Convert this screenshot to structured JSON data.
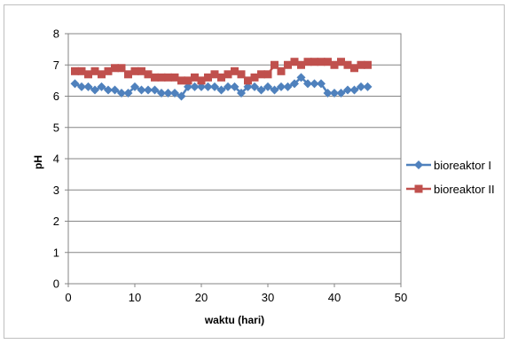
{
  "chart_data": {
    "type": "line",
    "title": "",
    "xlabel": "waktu (hari)",
    "ylabel": "pH",
    "xlim": [
      0,
      50
    ],
    "ylim": [
      0,
      8
    ],
    "xticks": [
      0,
      10,
      20,
      30,
      40,
      50
    ],
    "yticks": [
      0,
      1,
      2,
      3,
      4,
      5,
      6,
      7,
      8
    ],
    "grid": "horizontal",
    "legend_position": "right",
    "series": [
      {
        "name": "bioreaktor I",
        "color": "#4f81bd",
        "marker": "diamond",
        "x": [
          1,
          2,
          3,
          4,
          5,
          6,
          7,
          8,
          9,
          10,
          11,
          12,
          13,
          14,
          15,
          16,
          17,
          18,
          19,
          20,
          21,
          22,
          23,
          24,
          25,
          26,
          27,
          28,
          29,
          30,
          31,
          32,
          33,
          34,
          35,
          36,
          37,
          38,
          39,
          40,
          41,
          42,
          43,
          44,
          45
        ],
        "y": [
          6.4,
          6.3,
          6.3,
          6.2,
          6.3,
          6.2,
          6.2,
          6.1,
          6.1,
          6.3,
          6.2,
          6.2,
          6.2,
          6.1,
          6.1,
          6.1,
          6.0,
          6.3,
          6.3,
          6.3,
          6.3,
          6.3,
          6.2,
          6.3,
          6.3,
          6.1,
          6.3,
          6.3,
          6.2,
          6.3,
          6.2,
          6.3,
          6.3,
          6.4,
          6.6,
          6.4,
          6.4,
          6.4,
          6.1,
          6.1,
          6.1,
          6.2,
          6.2,
          6.3,
          6.3
        ]
      },
      {
        "name": "bioreaktor II",
        "color": "#c0504d",
        "marker": "square",
        "x": [
          1,
          2,
          3,
          4,
          5,
          6,
          7,
          8,
          9,
          10,
          11,
          12,
          13,
          14,
          15,
          16,
          17,
          18,
          19,
          20,
          21,
          22,
          23,
          24,
          25,
          26,
          27,
          28,
          29,
          30,
          31,
          32,
          33,
          34,
          35,
          36,
          37,
          38,
          39,
          40,
          41,
          42,
          43,
          44,
          45
        ],
        "y": [
          6.8,
          6.8,
          6.7,
          6.8,
          6.7,
          6.8,
          6.9,
          6.9,
          6.7,
          6.8,
          6.8,
          6.7,
          6.6,
          6.6,
          6.6,
          6.6,
          6.5,
          6.5,
          6.6,
          6.5,
          6.6,
          6.7,
          6.6,
          6.7,
          6.8,
          6.7,
          6.5,
          6.6,
          6.7,
          6.7,
          7.0,
          6.8,
          7.0,
          7.1,
          7.0,
          7.1,
          7.1,
          7.1,
          7.1,
          7.0,
          7.1,
          7.0,
          6.9,
          7.0,
          7.0
        ]
      }
    ]
  }
}
